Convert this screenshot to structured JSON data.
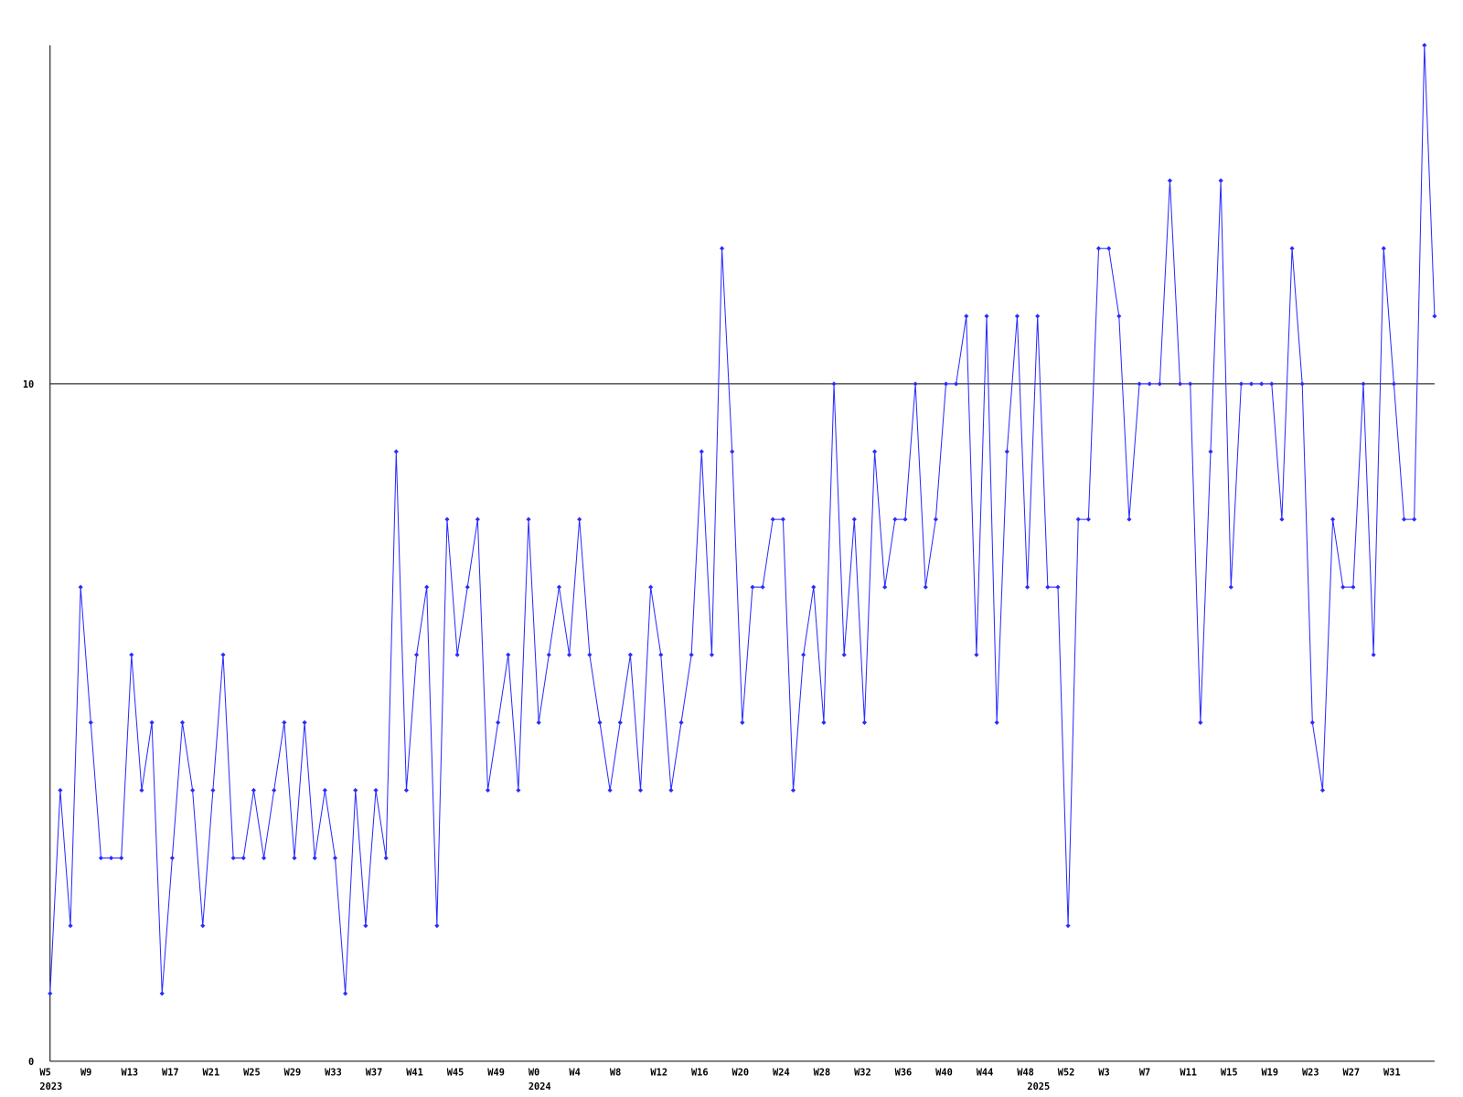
{
  "chart_data": {
    "type": "line",
    "color": "#2b2bff",
    "grid": true,
    "ylim": [
      0,
      15
    ],
    "yticks": [
      0,
      10
    ],
    "categories": [
      "W5",
      null,
      null,
      null,
      "W9",
      null,
      null,
      null,
      "W13",
      null,
      null,
      null,
      "W17",
      null,
      null,
      null,
      "W21",
      null,
      null,
      null,
      "W25",
      null,
      null,
      null,
      "W29",
      null,
      null,
      null,
      "W33",
      null,
      null,
      null,
      "W37",
      null,
      null,
      null,
      "W41",
      null,
      null,
      null,
      "W45",
      null,
      null,
      null,
      "W49",
      null,
      null,
      null,
      "W0",
      null,
      null,
      null,
      "W4",
      null,
      null,
      null,
      "W8",
      null,
      null,
      null,
      "W12",
      null,
      null,
      null,
      "W16",
      null,
      null,
      null,
      "W20",
      null,
      null,
      null,
      "W24",
      null,
      null,
      null,
      "W28",
      null,
      null,
      null,
      "W32",
      null,
      null,
      null,
      "W36",
      null,
      null,
      null,
      "W40",
      null,
      null,
      null,
      "W44",
      null,
      null,
      null,
      "W48",
      null,
      null,
      null,
      "W52",
      null,
      null,
      null,
      "W3",
      null,
      null,
      null,
      "W7",
      null,
      null,
      null,
      "W11",
      null,
      null,
      null,
      "W15",
      null,
      null,
      null,
      "W19",
      null,
      null,
      null,
      "W23",
      null,
      null,
      null,
      "W27",
      null,
      null,
      null,
      "W31",
      null,
      null,
      null,
      null
    ],
    "category_years": [
      "2023",
      null,
      null,
      null,
      null,
      null,
      null,
      null,
      null,
      null,
      null,
      null,
      null,
      null,
      null,
      null,
      null,
      null,
      null,
      null,
      null,
      null,
      null,
      null,
      null,
      null,
      null,
      null,
      null,
      null,
      null,
      null,
      null,
      null,
      null,
      null,
      null,
      null,
      null,
      null,
      null,
      null,
      null,
      null,
      null,
      null,
      null,
      null,
      "2024",
      null,
      null,
      null,
      null,
      null,
      null,
      null,
      null,
      null,
      null,
      null,
      null,
      null,
      null,
      null,
      null,
      null,
      null,
      null,
      null,
      null,
      null,
      null,
      null,
      null,
      null,
      null,
      null,
      null,
      null,
      null,
      null,
      null,
      null,
      null,
      null,
      null,
      null,
      null,
      null,
      null,
      null,
      null,
      null,
      null,
      null,
      null,
      null,
      "2025",
      null,
      null,
      null,
      null,
      null,
      null,
      null,
      null,
      null,
      null,
      null,
      null,
      null,
      null,
      null,
      null,
      null,
      null,
      null,
      null,
      null,
      null,
      null,
      null,
      null,
      null,
      null,
      null,
      null,
      null,
      null,
      null,
      null,
      null,
      null
    ],
    "values": [
      1,
      4,
      2,
      7,
      5,
      3,
      3,
      3,
      6,
      4,
      5,
      1,
      3,
      5,
      4,
      2,
      4,
      6,
      3,
      3,
      4,
      3,
      4,
      5,
      3,
      5,
      3,
      4,
      3,
      1,
      4,
      2,
      4,
      3,
      9,
      4,
      6,
      7,
      2,
      8,
      6,
      7,
      8,
      4,
      5,
      6,
      4,
      8,
      5,
      6,
      7,
      6,
      8,
      6,
      5,
      4,
      5,
      6,
      4,
      7,
      6,
      4,
      5,
      6,
      9,
      6,
      12,
      9,
      5,
      7,
      7,
      8,
      8,
      4,
      6,
      7,
      5,
      10,
      6,
      8,
      5,
      9,
      7,
      8,
      8,
      10,
      7,
      8,
      10,
      10,
      11,
      6,
      11,
      5,
      9,
      11,
      7,
      11,
      7,
      7,
      2,
      8,
      8,
      12,
      12,
      11,
      8,
      10,
      10,
      10,
      13,
      10,
      10,
      5,
      9,
      13,
      7,
      10,
      10,
      10,
      10,
      8,
      12,
      10,
      5,
      4,
      8,
      7,
      7,
      10,
      6,
      12,
      10,
      8,
      8,
      15,
      11
    ]
  }
}
